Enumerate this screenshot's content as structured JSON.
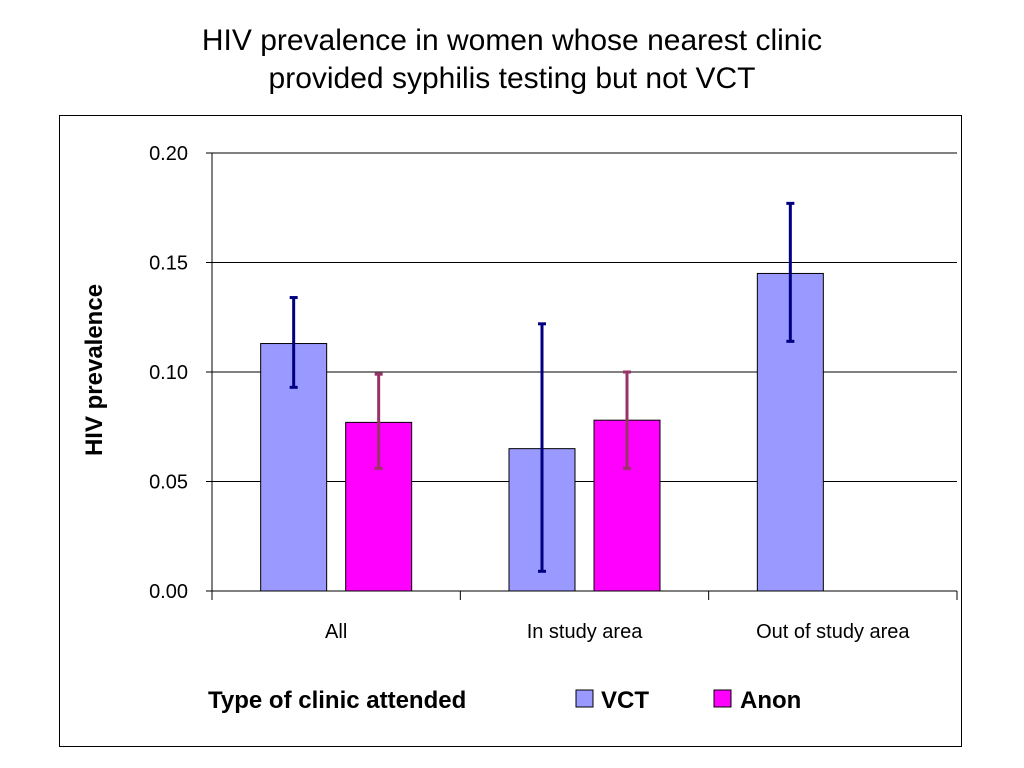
{
  "chart_data": {
    "type": "bar",
    "title": [
      "HIV prevalence in women whose nearest clinic",
      "provided syphilis testing but not VCT"
    ],
    "xlabel": "Type of clinic attended",
    "ylabel": "HIV prevalence",
    "categories": [
      "All",
      "In study area",
      "Out of study area"
    ],
    "ylim": [
      0,
      0.2
    ],
    "yticks": [
      "0.00",
      "0.05",
      "0.10",
      "0.15",
      "0.20"
    ],
    "grid": true,
    "legend_position": "bottom",
    "series": [
      {
        "name": "VCT",
        "color": "#9999FF",
        "error_color": "#000080",
        "values": [
          0.113,
          0.065,
          0.145
        ],
        "error_low": [
          0.093,
          0.009,
          0.114
        ],
        "error_high": [
          0.134,
          0.122,
          0.177
        ]
      },
      {
        "name": "Anon",
        "color": "#FF00FF",
        "error_color": "#993366",
        "values": [
          0.077,
          0.078,
          null
        ],
        "error_low": [
          0.056,
          0.056,
          null
        ],
        "error_high": [
          0.099,
          0.1,
          null
        ]
      }
    ]
  }
}
